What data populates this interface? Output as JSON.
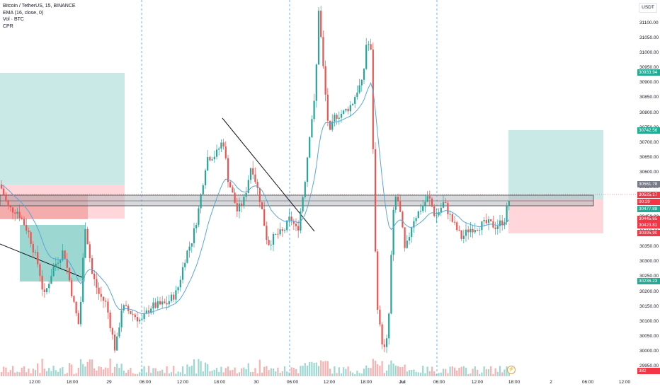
{
  "legend": {
    "symbol": "Bitcoin / TetherUS, 15, BINANCE",
    "ema": "EMA (16, close, 0)",
    "vol": "Vol · BTC",
    "cpr": "CPR"
  },
  "currency": "USDT",
  "price_ticks": [
    "31100.00",
    "31050.00",
    "31000.00",
    "30950.00",
    "30900.00",
    "30850.00",
    "30800.00",
    "30750.00",
    "30700.00",
    "30650.00",
    "30600.00",
    "30550.00",
    "30500.00",
    "30450.00",
    "30400.00",
    "30350.00",
    "30300.00",
    "30250.00",
    "30200.00",
    "30150.00",
    "30100.00",
    "30050.00",
    "30000.00",
    "29950.00"
  ],
  "price_labels": [
    {
      "text": "30933.94",
      "color": "#22ab94"
    },
    {
      "text": "30742.56",
      "color": "#22ab94"
    },
    {
      "text": "30561.78",
      "color": "#787b86"
    },
    {
      "text": "30525.17",
      "color": "#f23645"
    },
    {
      "text": "00:29",
      "color": "#f23645"
    },
    {
      "text": "30477.88",
      "color": "#22ab94"
    },
    {
      "text": "30445.65",
      "color": "#f23645"
    },
    {
      "text": "30423.81",
      "color": "#f23645"
    },
    {
      "text": "30395.90",
      "color": "#f23645"
    },
    {
      "text": "30236.23",
      "color": "#22ab94"
    },
    {
      "text": "382",
      "color": "#f23645"
    }
  ],
  "time_ticks": [
    "12:00",
    "18:00",
    "29",
    "06:00",
    "12:00",
    "18:00",
    "30",
    "06:00",
    "12:00",
    "18:00",
    "Jul",
    "06:00",
    "12:00",
    "18:00",
    "2",
    "06:00",
    "12:00"
  ],
  "chart_data": {
    "type": "candlestick",
    "symbol": "Bitcoin / TetherUS, 15, BINANCE",
    "ylim": [
      29920,
      31170
    ],
    "indicators": [
      "EMA (16, close, 0)",
      "Vol · BTC",
      "CPR"
    ],
    "last_price": 30525.17
  },
  "colors": {
    "up": "#26a69a",
    "down": "#ef5350",
    "ema": "#5aa6d6",
    "profit_zone": "#b2dfdb",
    "loss_zone": "#ffcdd2"
  }
}
